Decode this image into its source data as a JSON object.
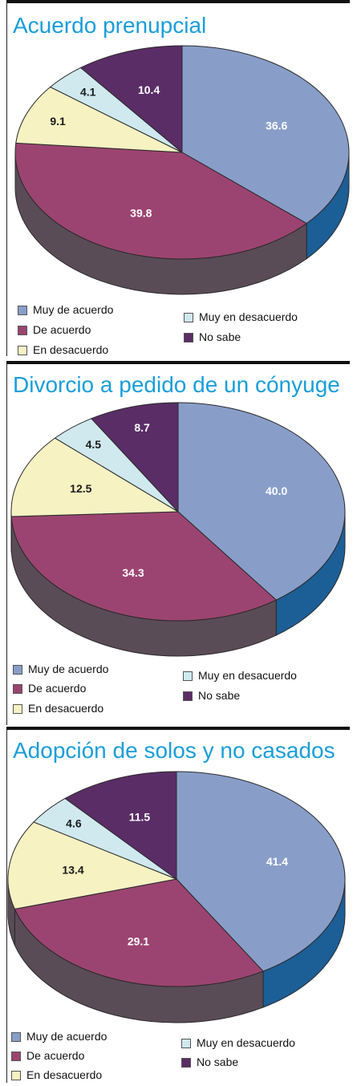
{
  "colors": {
    "muy_de_acuerdo": "#889ec9",
    "de_acuerdo": "#9c4471",
    "en_desacuerdo": "#f6f2c2",
    "muy_en_desacuerdo": "#cfe9ef",
    "no_sabe": "#5a2d66",
    "side_blue": "#1c5e96",
    "side_dark": "#5a4c56",
    "title": "#1a9ed9"
  },
  "legend": {
    "muy_de_acuerdo": "Muy de acuerdo",
    "de_acuerdo": "De acuerdo",
    "en_desacuerdo": "En desacuerdo",
    "muy_en_desacuerdo": "Muy en desacuerdo",
    "no_sabe": "No sabe"
  },
  "chart_data": [
    {
      "type": "pie",
      "title": "Acuerdo prenupcial",
      "labels": [
        "Muy de acuerdo",
        "De acuerdo",
        "En desacuerdo",
        "Muy en desacuerdo",
        "No sabe"
      ],
      "values": [
        36.6,
        39.8,
        9.1,
        4.1,
        10.4
      ],
      "value_labels": [
        "36.6",
        "39.8",
        "9.1",
        "4.1",
        "10.4"
      ],
      "legend_position": "bottom",
      "style": "3d"
    },
    {
      "type": "pie",
      "title": "Divorcio a pedido de un cónyuge",
      "labels": [
        "Muy de acuerdo",
        "De acuerdo",
        "En desacuerdo",
        "Muy en desacuerdo",
        "No sabe"
      ],
      "values": [
        40.0,
        34.3,
        12.5,
        4.5,
        8.7
      ],
      "value_labels": [
        "40.0",
        "34.3",
        "12.5",
        "4.5",
        "8.7"
      ],
      "legend_position": "bottom",
      "style": "3d"
    },
    {
      "type": "pie",
      "title": "Adopción de solos y no casados",
      "labels": [
        "Muy de acuerdo",
        "De acuerdo",
        "En desacuerdo",
        "Muy en desacuerdo",
        "No sabe"
      ],
      "values": [
        41.4,
        29.1,
        13.4,
        4.6,
        11.5
      ],
      "value_labels": [
        "41.4",
        "29.1",
        "13.4",
        "4.6",
        "11.5"
      ],
      "legend_position": "bottom",
      "style": "3d"
    }
  ]
}
